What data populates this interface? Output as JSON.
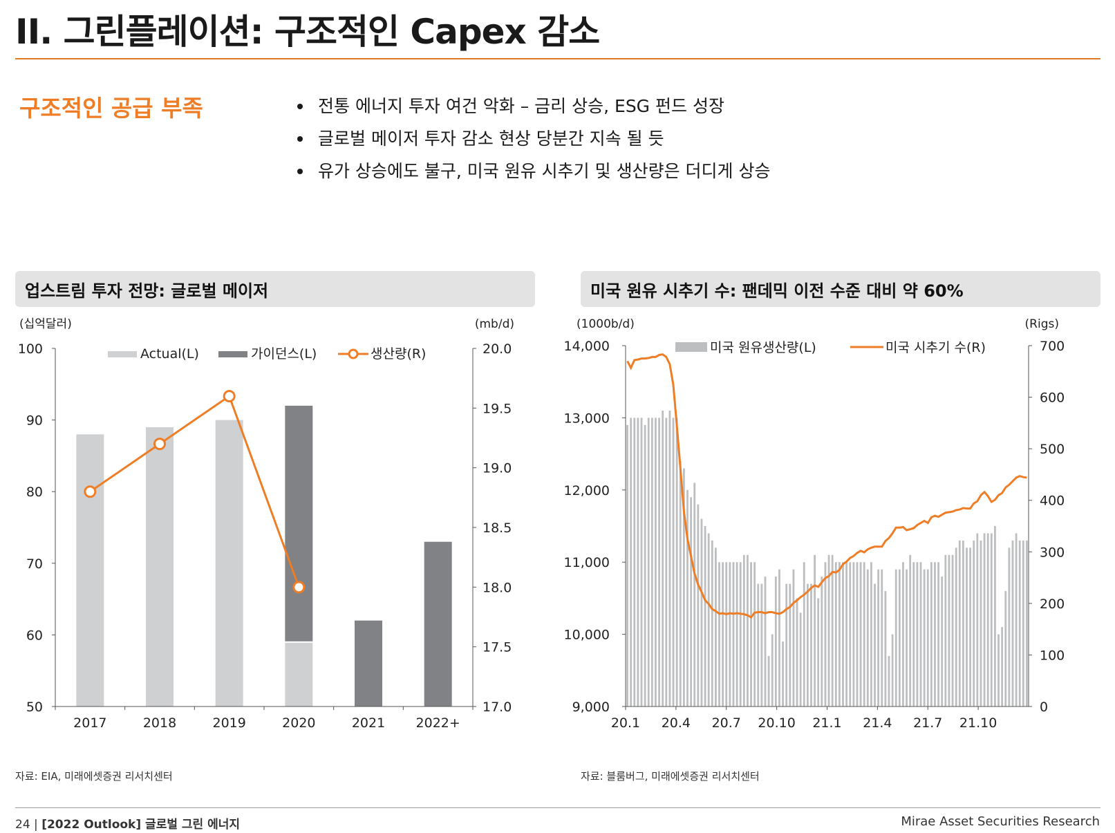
{
  "header": {
    "title": "II. 그린플레이션: 구조적인 Capex 감소"
  },
  "section": {
    "label": "구조적인 공급 부족",
    "bullets": [
      "전통 에너지 투자 여건 악화 – 금리 상승, ESG 펀드 성장",
      "글로벌 메이저 투자 감소 현상 당분간 지속 될 듯",
      "유가 상승에도 불구, 미국 원유 시추기 및 생산량은 더디게 상승"
    ]
  },
  "left_chart": {
    "heading": "업스트림 투자 전망: 글로벌 메이저",
    "source": "자료: EIA, 미래에셋증권 리서치센터"
  },
  "right_chart": {
    "heading": "미국 원유 시추기 수: 팬데믹 이전 수준 대비 약 60%",
    "source": "자료: 블룸버그, 미래에셋증권 리서치센터"
  },
  "colors": {
    "accent": "#ee7d25",
    "actual": "#cfd0d2",
    "guidance": "#808285",
    "production_bar": "#bdbec0",
    "rig_line": "#ee7d25"
  },
  "chart_data": [
    {
      "type": "bar",
      "categories": [
        "2017",
        "2018",
        "2019",
        "2020",
        "2021",
        "2022+"
      ],
      "series": [
        {
          "name": "Actual(L)",
          "axis": "left",
          "values": [
            88,
            89,
            90,
            59,
            null,
            null
          ]
        },
        {
          "name": "가이던스(L)",
          "axis": "left",
          "values": [
            null,
            null,
            null,
            92,
            62,
            73
          ]
        },
        {
          "name": "생산량(R)",
          "axis": "right",
          "kind": "line",
          "values": [
            18.8,
            19.2,
            19.6,
            18.0,
            null,
            null
          ]
        }
      ],
      "ylabel_left": "(십억달러)",
      "ylabel_right": "(mb/d)",
      "ylim_left": [
        50,
        100
      ],
      "yticks_left": [
        "50",
        "60",
        "70",
        "80",
        "90",
        "100"
      ],
      "ylim_right": [
        17.0,
        20.0
      ],
      "yticks_right": [
        "17.0",
        "17.5",
        "18.0",
        "18.5",
        "19.0",
        "19.5",
        "20.0"
      ],
      "legend": "top",
      "grid": false
    },
    {
      "type": "bar",
      "x_ticks": [
        "20.1",
        "20.4",
        "20.7",
        "20.10",
        "21.1",
        "21.4",
        "21.7",
        "21.10"
      ],
      "series": [
        {
          "name": "미국 원유생산량(L)",
          "axis": "left",
          "period": "weekly",
          "values": [
            12900,
            13000,
            13000,
            13000,
            13000,
            12900,
            13000,
            13000,
            13000,
            13000,
            13100,
            13000,
            13100,
            13000,
            13000,
            12400,
            12300,
            12000,
            11900,
            12100,
            11800,
            11600,
            11500,
            11400,
            11300,
            11200,
            11000,
            11000,
            11000,
            11000,
            11000,
            11000,
            11000,
            11100,
            11100,
            11000,
            11000,
            10700,
            10700,
            10800,
            9700,
            10000,
            10800,
            10900,
            9900,
            10700,
            10700,
            10900,
            10500,
            10300,
            11000,
            10700,
            10700,
            11100,
            10500,
            10800,
            11000,
            11100,
            11100,
            11000,
            11000,
            11000,
            11000,
            11000,
            11000,
            11000,
            11000,
            11000,
            10900,
            11000,
            10700,
            10900,
            10900,
            10600,
            9700,
            10000,
            10900,
            10900,
            11000,
            10900,
            11100,
            11000,
            11000,
            11000,
            10900,
            10900,
            11000,
            11000,
            11000,
            10800,
            11100,
            11100,
            11100,
            11200,
            11300,
            11300,
            11200,
            11200,
            11300,
            11400,
            11300,
            11400,
            11400,
            11400,
            11500,
            10000,
            10100,
            10600,
            11200,
            11300,
            11400,
            11300,
            11300,
            11300
          ]
        },
        {
          "name": "미국 시추기 수(R)",
          "axis": "right",
          "kind": "line",
          "period": "weekly",
          "values": [
            670,
            657,
            672,
            673,
            675,
            675,
            676,
            678,
            678,
            682,
            683,
            678,
            664,
            624,
            544,
            462,
            378,
            325,
            292,
            258,
            237,
            222,
            206,
            199,
            189,
            185,
            180,
            181,
            179,
            181,
            180,
            181,
            180,
            179,
            177,
            173,
            182,
            183,
            183,
            181,
            183,
            183,
            181,
            180,
            183,
            189,
            193,
            201,
            206,
            212,
            217,
            223,
            230,
            235,
            232,
            241,
            249,
            253,
            261,
            260,
            265,
            276,
            281,
            288,
            292,
            298,
            302,
            299,
            305,
            308,
            310,
            310,
            310,
            321,
            327,
            336,
            347,
            347,
            348,
            342,
            344,
            346,
            352,
            356,
            360,
            356,
            367,
            370,
            368,
            372,
            376,
            377,
            378,
            381,
            382,
            385,
            384,
            384,
            394,
            398,
            410,
            416,
            408,
            397,
            401,
            410,
            414,
            425,
            430,
            437,
            444,
            447,
            445,
            444
          ]
        }
      ],
      "ylabel_left": "(1000b/d)",
      "ylabel_right": "(Rigs)",
      "ylim_left": [
        9000,
        14000
      ],
      "yticks_left": [
        "9,000",
        "10,000",
        "11,000",
        "12,000",
        "13,000",
        "14,000"
      ],
      "ylim_right": [
        0,
        700
      ],
      "yticks_right": [
        "0",
        "100",
        "200",
        "300",
        "400",
        "500",
        "600",
        "700"
      ],
      "legend": "top",
      "grid": false
    }
  ],
  "footer": {
    "page": "24",
    "separator": "|",
    "report": "[2022 Outlook] 글로벌 그린 에너지",
    "brand": "Mirae Asset Securities Research"
  }
}
